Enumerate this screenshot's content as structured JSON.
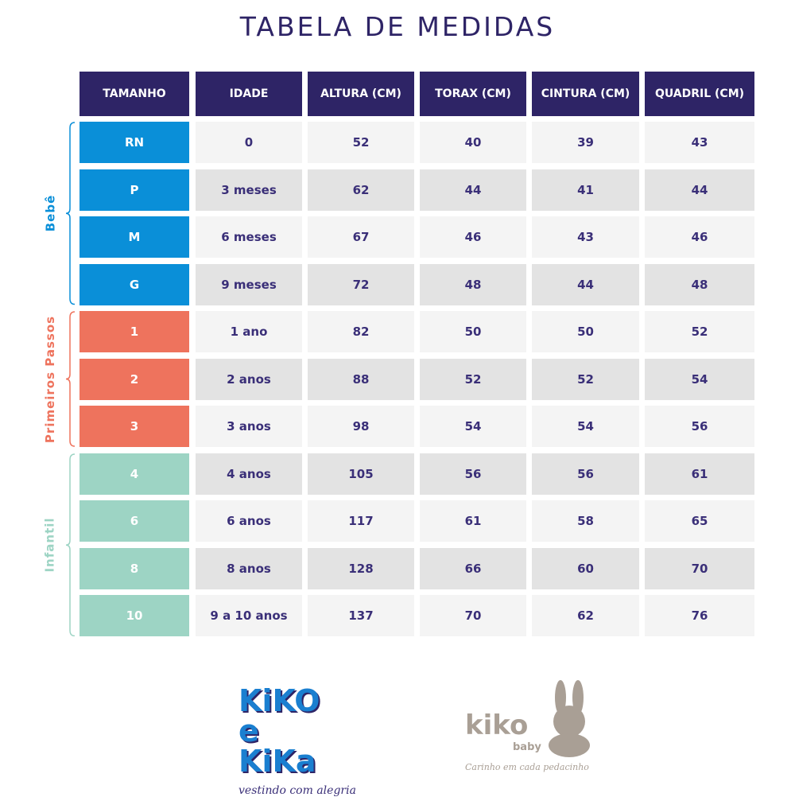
{
  "title": "TABELA DE MEDIDAS",
  "headers": [
    "TAMANHO",
    "IDADE",
    "ALTURA (CM)",
    "TORAX (CM)",
    "CINTURA (CM)",
    "QUADRIL (CM)"
  ],
  "groups": [
    {
      "label": "Bebê",
      "color": "#0a8fd8",
      "rows": [
        [
          "RN",
          "0",
          "52",
          "40",
          "39",
          "43"
        ],
        [
          "P",
          "3 meses",
          "62",
          "44",
          "41",
          "44"
        ],
        [
          "M",
          "6 meses",
          "67",
          "46",
          "43",
          "46"
        ],
        [
          "G",
          "9 meses",
          "72",
          "48",
          "44",
          "48"
        ]
      ]
    },
    {
      "label": "Primeiros Passos",
      "color": "#ee735d",
      "rows": [
        [
          "1",
          "1 ano",
          "82",
          "50",
          "50",
          "52"
        ],
        [
          "2",
          "2 anos",
          "88",
          "52",
          "52",
          "54"
        ],
        [
          "3",
          "3 anos",
          "98",
          "54",
          "54",
          "56"
        ]
      ]
    },
    {
      "label": "Infantil",
      "color": "#9dd4c4",
      "rows": [
        [
          "4",
          "4 anos",
          "105",
          "56",
          "56",
          "61"
        ],
        [
          "6",
          "6 anos",
          "117",
          "61",
          "58",
          "65"
        ],
        [
          "8",
          "8 anos",
          "128",
          "66",
          "60",
          "70"
        ],
        [
          "10",
          "9 a 10 anos",
          "137",
          "70",
          "62",
          "76"
        ]
      ]
    }
  ],
  "logos": {
    "kiko_e_kika": {
      "name": "KiKO e KiKa",
      "tagline": "vestindo com alegria"
    },
    "kiko_baby": {
      "name": "kiko",
      "sub": "baby",
      "tagline": "Carinho em cada pedacinho"
    }
  }
}
